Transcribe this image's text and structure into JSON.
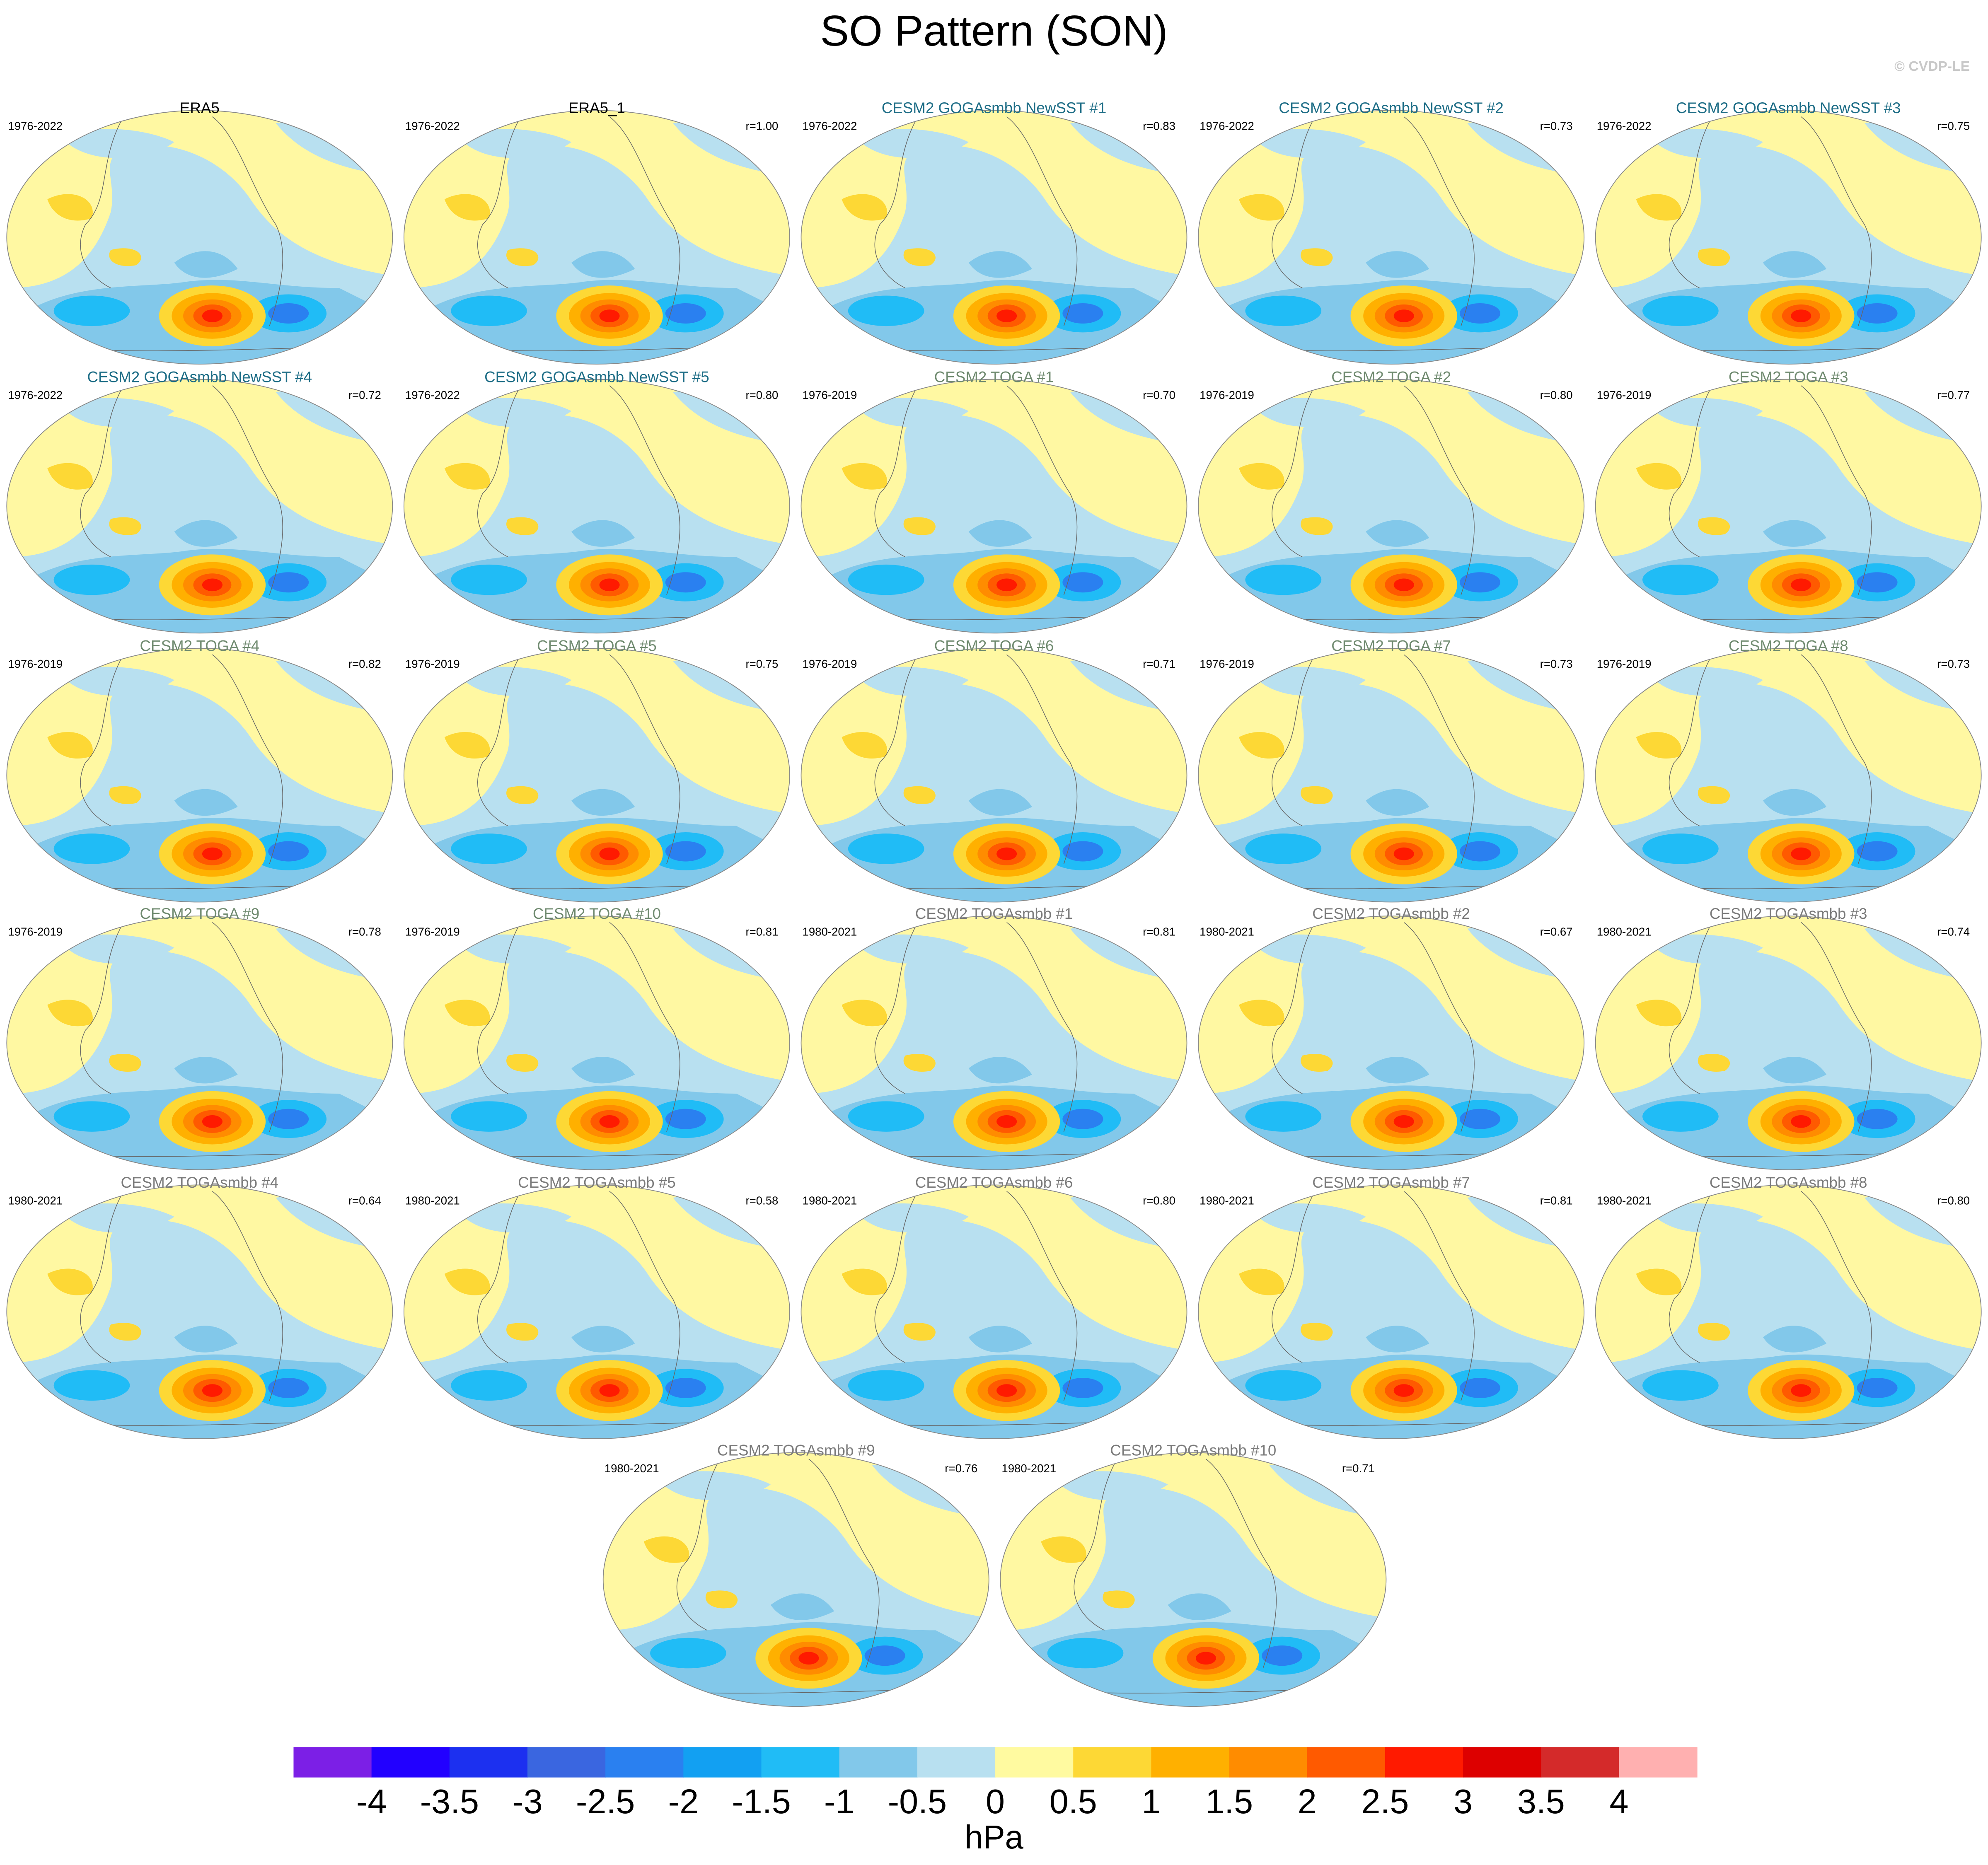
{
  "chart_data": {
    "type": "map_panels",
    "title": "SO Pattern (SON)",
    "credit": "© CVDP-LE",
    "panels": [
      {
        "title": "ERA5",
        "period": "1976-2022",
        "title_color": "#000000"
      },
      {
        "title": "ERA5_1",
        "period": "1976-2022",
        "r": "r=1.00",
        "title_color": "#000000"
      },
      {
        "title": "CESM2 GOGAsmbb NewSST #1",
        "period": "1976-2022",
        "r": "r=0.83",
        "title_color": "#1d6d86"
      },
      {
        "title": "CESM2 GOGAsmbb NewSST #2",
        "period": "1976-2022",
        "r": "r=0.73",
        "title_color": "#1d6d86"
      },
      {
        "title": "CESM2 GOGAsmbb NewSST #3",
        "period": "1976-2022",
        "r": "r=0.75",
        "title_color": "#1d6d86"
      },
      {
        "title": "CESM2 GOGAsmbb NewSST #4",
        "period": "1976-2022",
        "r": "r=0.72",
        "title_color": "#1d6d86"
      },
      {
        "title": "CESM2 GOGAsmbb NewSST #5",
        "period": "1976-2022",
        "r": "r=0.80",
        "title_color": "#1d6d86"
      },
      {
        "title": "CESM2 TOGA #1",
        "period": "1976-2019",
        "r": "r=0.70",
        "title_color": "#6f8a6f"
      },
      {
        "title": "CESM2 TOGA #2",
        "period": "1976-2019",
        "r": "r=0.80",
        "title_color": "#6f8a6f"
      },
      {
        "title": "CESM2 TOGA #3",
        "period": "1976-2019",
        "r": "r=0.77",
        "title_color": "#6f8a6f"
      },
      {
        "title": "CESM2 TOGA #4",
        "period": "1976-2019",
        "r": "r=0.82",
        "title_color": "#6f8a6f"
      },
      {
        "title": "CESM2 TOGA #5",
        "period": "1976-2019",
        "r": "r=0.75",
        "title_color": "#6f8a6f"
      },
      {
        "title": "CESM2 TOGA #6",
        "period": "1976-2019",
        "r": "r=0.71",
        "title_color": "#6f8a6f"
      },
      {
        "title": "CESM2 TOGA #7",
        "period": "1976-2019",
        "r": "r=0.73",
        "title_color": "#6f8a6f"
      },
      {
        "title": "CESM2 TOGA #8",
        "period": "1976-2019",
        "r": "r=0.73",
        "title_color": "#6f8a6f"
      },
      {
        "title": "CESM2 TOGA #9",
        "period": "1976-2019",
        "r": "r=0.78",
        "title_color": "#6f8a6f"
      },
      {
        "title": "CESM2 TOGA #10",
        "period": "1976-2019",
        "r": "r=0.81",
        "title_color": "#6f8a6f"
      },
      {
        "title": "CESM2 TOGAsmbb #1",
        "period": "1980-2021",
        "r": "r=0.81",
        "title_color": "#7a7a7a"
      },
      {
        "title": "CESM2 TOGAsmbb #2",
        "period": "1980-2021",
        "r": "r=0.67",
        "title_color": "#7a7a7a"
      },
      {
        "title": "CESM2 TOGAsmbb #3",
        "period": "1980-2021",
        "r": "r=0.74",
        "title_color": "#7a7a7a"
      },
      {
        "title": "CESM2 TOGAsmbb #4",
        "period": "1980-2021",
        "r": "r=0.64",
        "title_color": "#7a7a7a"
      },
      {
        "title": "CESM2 TOGAsmbb #5",
        "period": "1980-2021",
        "r": "r=0.58",
        "title_color": "#7a7a7a"
      },
      {
        "title": "CESM2 TOGAsmbb #6",
        "period": "1980-2021",
        "r": "r=0.80",
        "title_color": "#7a7a7a"
      },
      {
        "title": "CESM2 TOGAsmbb #7",
        "period": "1980-2021",
        "r": "r=0.81",
        "title_color": "#7a7a7a"
      },
      {
        "title": "CESM2 TOGAsmbb #8",
        "period": "1980-2021",
        "r": "r=0.80",
        "title_color": "#7a7a7a"
      },
      {
        "title": "CESM2 TOGAsmbb #9",
        "period": "1980-2021",
        "r": "r=0.76",
        "title_color": "#7a7a7a"
      },
      {
        "title": "CESM2 TOGAsmbb #10",
        "period": "1980-2021",
        "r": "r=0.71",
        "title_color": "#7a7a7a"
      }
    ],
    "colorbar": {
      "label": "hPa",
      "colors": [
        "#7c1fe6",
        "#2200ff",
        "#1c30f0",
        "#3a66e0",
        "#2a80f0",
        "#12a0f2",
        "#20bcf6",
        "#82c8ea",
        "#b8e0f0",
        "#fffaa0",
        "#fdd835",
        "#ffb000",
        "#ff8c00",
        "#ff5a00",
        "#ff1a00",
        "#dd0000",
        "#d42a2a",
        "#ffb0b0"
      ],
      "ticks": [
        -4,
        -3.5,
        -3,
        -2.5,
        -2,
        -1.5,
        -1,
        -0.5,
        0,
        0.5,
        1,
        1.5,
        2,
        2.5,
        3,
        3.5,
        4
      ]
    }
  }
}
